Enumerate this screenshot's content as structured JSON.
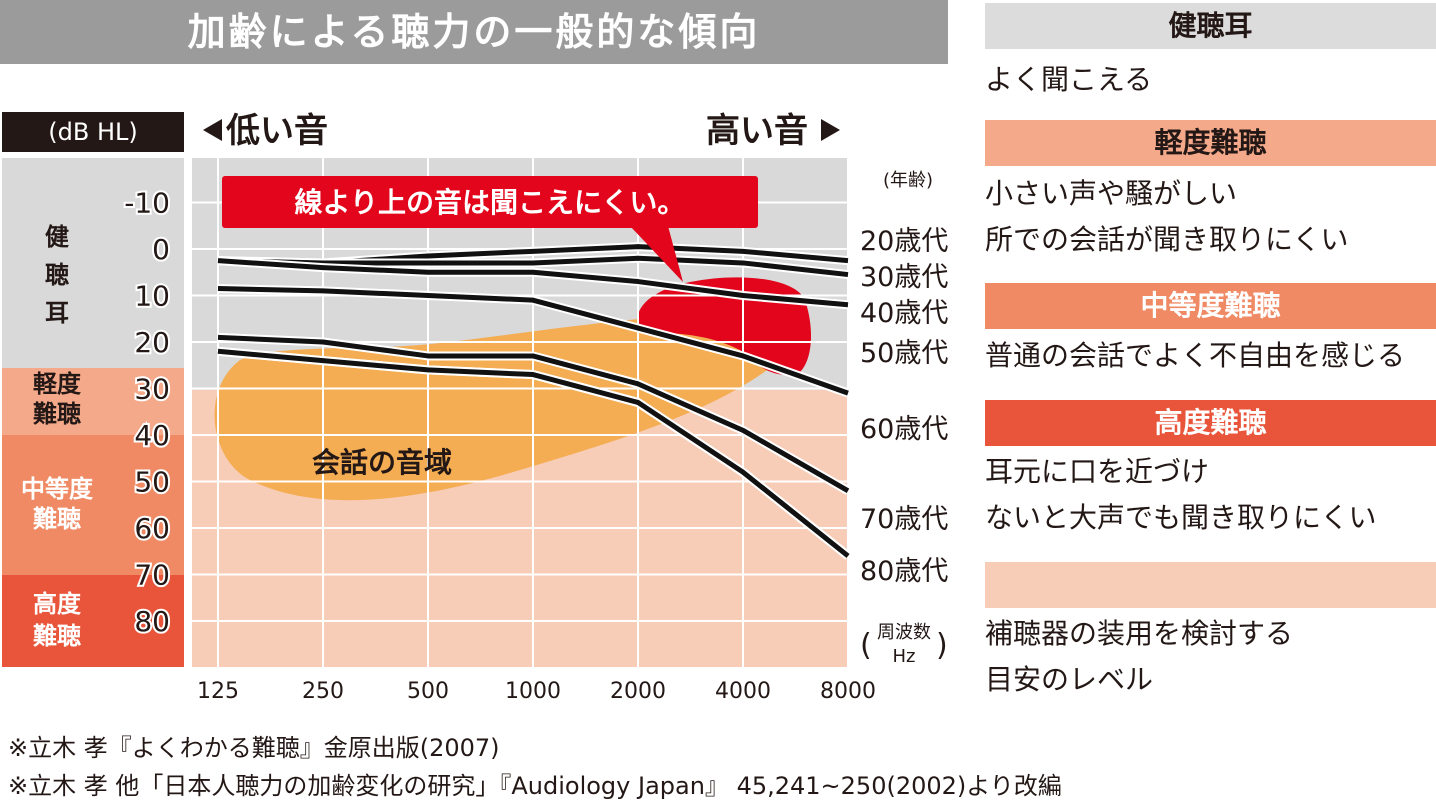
{
  "title": "加齢による聴力の一般的な傾向",
  "unit_label": "(dB HL)",
  "low_label": "低い音",
  "high_label": "高い音",
  "callout": "線より上の音は聞こえにくい。",
  "age_header": "(年齢)",
  "freq_label": [
    "周波数",
    "Hz"
  ],
  "speech_label": "会話の音域",
  "bands": [
    {
      "label": "健聴耳",
      "from": -20,
      "to": 25,
      "color": "#d9d9d9",
      "axis_color": "#d9d9d9"
    },
    {
      "label": "軽度難聴",
      "from": 25,
      "to": 40,
      "color": "#f8cdb7",
      "axis_color": "#f3a98a"
    },
    {
      "label": "中等度難聴",
      "from": 40,
      "to": 70,
      "color": "#f8cdb7",
      "axis_color": "#ef8a64"
    },
    {
      "label": "高度難聴",
      "from": 70,
      "to": 90,
      "color": "#f8cdb7",
      "axis_color": "#e8553a"
    }
  ],
  "colors": {
    "title_bg": "#9b9b9b",
    "callout_bg": "#e2051b",
    "speech_area": "#f4ad52",
    "red_region": "#e2051b",
    "line": "#111111"
  },
  "chart_data": {
    "type": "line",
    "x": [
      125,
      250,
      500,
      1000,
      2000,
      4000,
      8000
    ],
    "x_tick_labels": [
      "125",
      "250",
      "500",
      "1000",
      "2000",
      "4000",
      "8000"
    ],
    "x_scale": "log2",
    "ylim": [
      -20,
      90
    ],
    "y_inverted": true,
    "y_ticks": [
      -10,
      0,
      10,
      20,
      30,
      40,
      50,
      60,
      70,
      80
    ],
    "series": [
      {
        "name": "20歳代",
        "values": [
          2.5,
          3,
          1.5,
          0.5,
          -0.5,
          0.5,
          2.5
        ]
      },
      {
        "name": "30歳代",
        "values": [
          2.5,
          3,
          3,
          3,
          2,
          3,
          5.5
        ]
      },
      {
        "name": "40歳代",
        "values": [
          2.5,
          4,
          5,
          5,
          7,
          10,
          12
        ]
      },
      {
        "name": "50歳代",
        "values": [
          8.5,
          9,
          10,
          11,
          17,
          23,
          31
        ]
      },
      {
        "name": "60歳代",
        "values": [
          19,
          20,
          23,
          23,
          29,
          39,
          52
        ]
      },
      {
        "name": "70歳代",
        "values": [
          22,
          24,
          26,
          27,
          33,
          48,
          66
        ]
      },
      {
        "name": "80歳代",
        "values": [
          22,
          24,
          26,
          27,
          33,
          48,
          66
        ]
      }
    ]
  },
  "legend": [
    {
      "header": "健聴耳",
      "color": "#dcdcdc",
      "text_color": "#231815",
      "desc": [
        "よく聞こえる"
      ]
    },
    {
      "header": "軽度難聴",
      "color": "#f3a98a",
      "text_color": "#231815",
      "desc": [
        "小さい声や騒がしい",
        "所での会話が聞き取りにくい"
      ]
    },
    {
      "header": "中等度難聴",
      "color": "#ef8a64",
      "text_color": "#ffffff",
      "desc": [
        "普通の会話でよく不自由を感じる"
      ]
    },
    {
      "header": "高度難聴",
      "color": "#e8553a",
      "text_color": "#ffffff",
      "desc": [
        "耳元に口を近づけ",
        "ないと大声でも聞き取りにくい"
      ]
    },
    {
      "header": "",
      "color": "#f8cdb7",
      "text_color": "#231815",
      "desc": [
        "補聴器の装用を検討する",
        "目安のレベル"
      ]
    }
  ],
  "sources": [
    "※立木 孝『よくわかる難聴』金原出版(2007)",
    "※立木 孝 他「日本人聴力の加齢変化の研究」『Audiology Japan』 45,241~250(2002)より改編"
  ]
}
